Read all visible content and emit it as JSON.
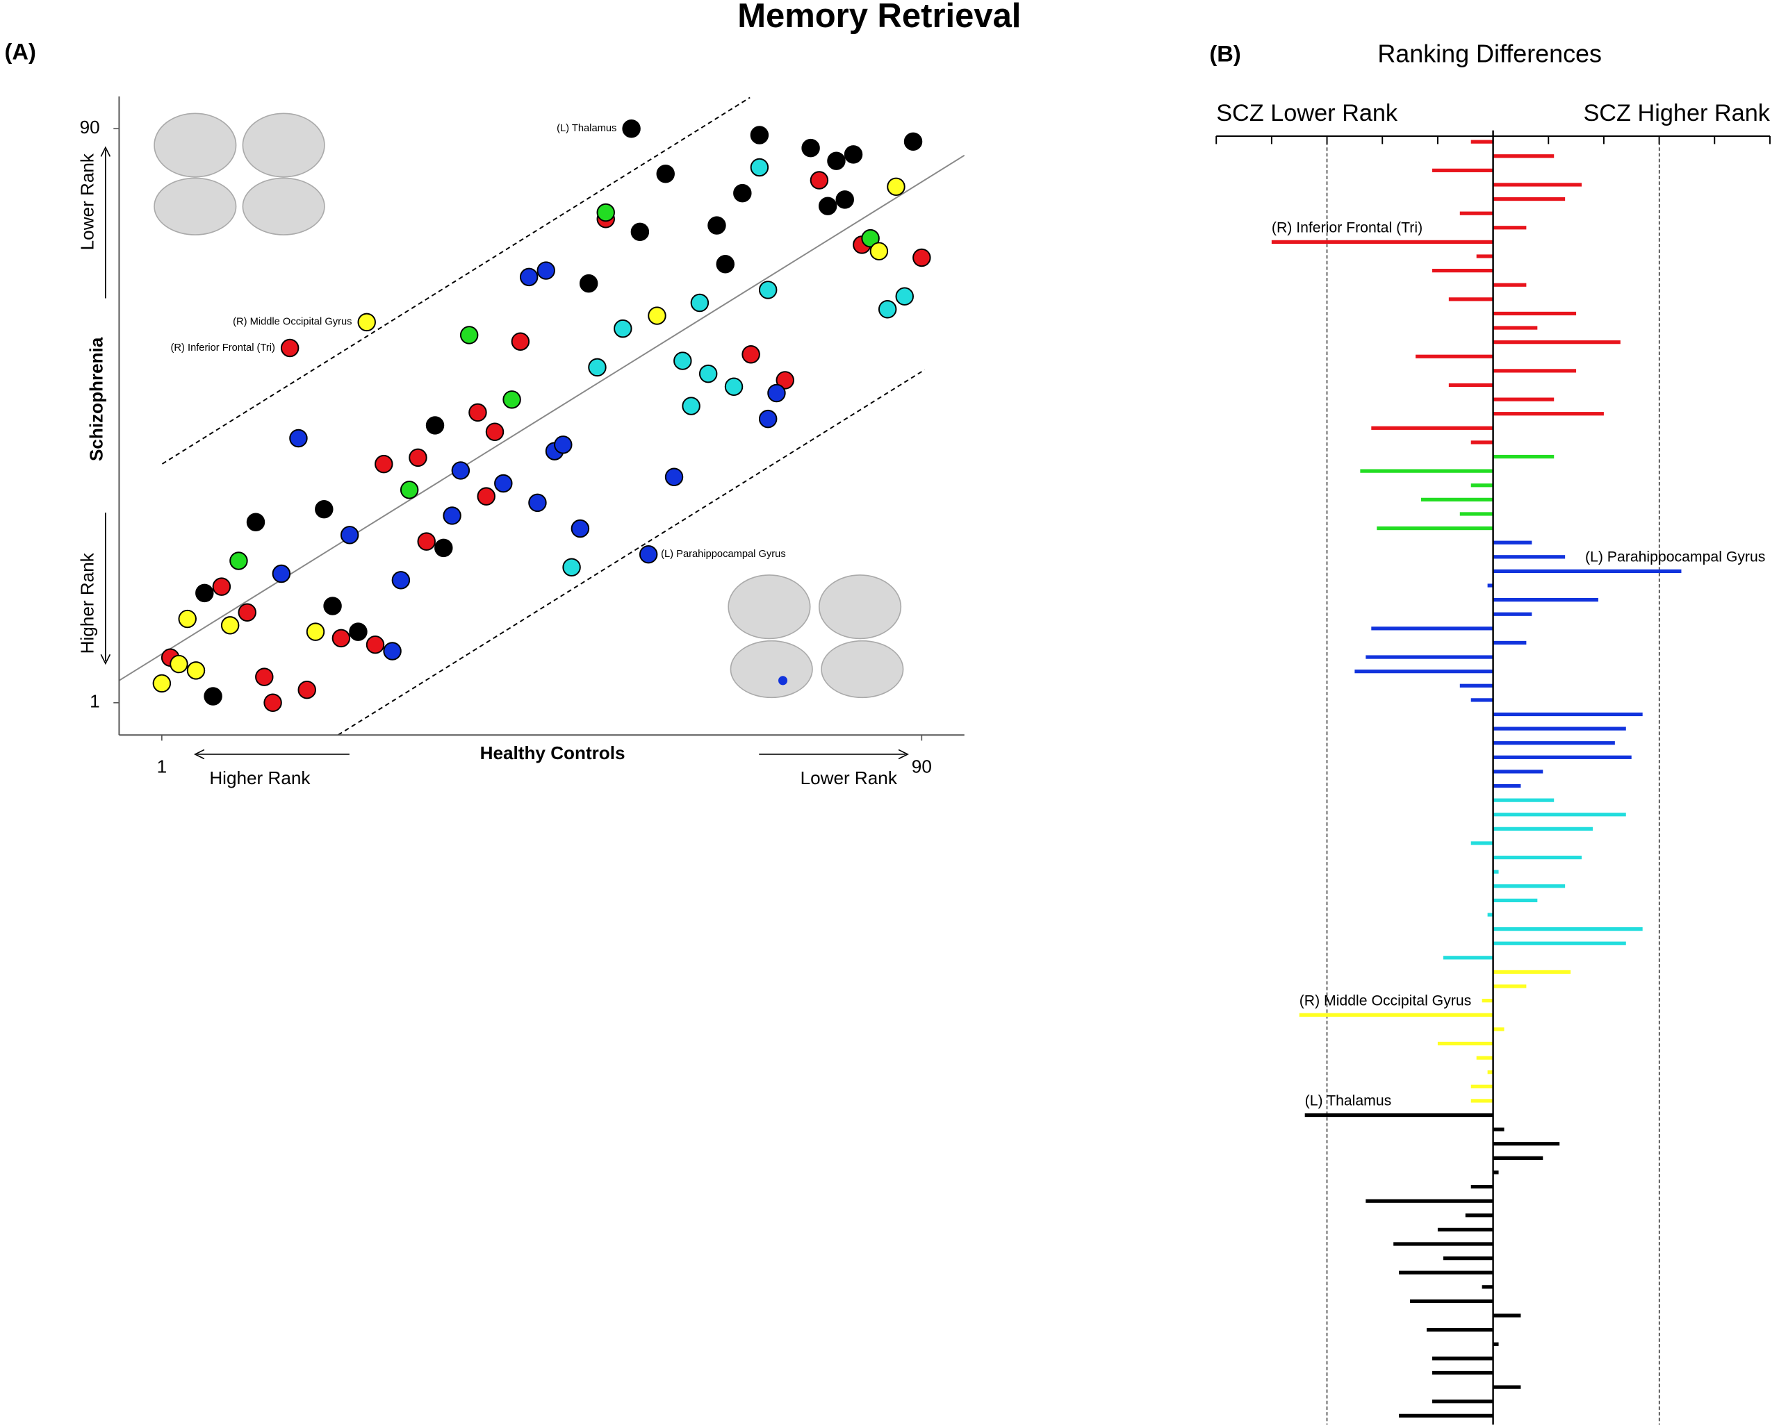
{
  "title": "Memory Retrieval",
  "chart_data": [
    {
      "type": "scatter",
      "panel": "(A)",
      "x_label": "Healthy Controls",
      "y_label": "Schizophrenia",
      "x_direction_labels": [
        "Higher Rank",
        "Lower Rank"
      ],
      "y_direction_labels": [
        "Higher Rank",
        "Lower Rank"
      ],
      "xlim": [
        -4,
        95
      ],
      "ylim": [
        -4,
        95
      ],
      "xticks": [
        1,
        90
      ],
      "yticks": [
        1,
        90
      ],
      "series": [
        {
          "color": "#000000",
          "x": [
            56,
            71,
            77,
            80,
            82,
            89,
            60,
            69,
            79,
            81,
            57,
            66,
            67,
            51,
            33,
            20,
            12,
            6,
            21,
            24,
            34,
            7
          ],
          "y": [
            90,
            89,
            87,
            85,
            86,
            88,
            83,
            80,
            78,
            79,
            74,
            75,
            69,
            66,
            44,
            31,
            29,
            18,
            16,
            12,
            25,
            2
          ],
          "labels": [
            "(L) Thalamus",
            null,
            null,
            null,
            null,
            null,
            null,
            null,
            null,
            null,
            null,
            null,
            null,
            null,
            null,
            null,
            null,
            null,
            null,
            null,
            null,
            null
          ]
        },
        {
          "color": "#e8141c",
          "x": [
            78,
            53,
            83,
            90,
            43,
            16,
            70,
            74,
            38,
            40,
            27,
            31,
            39,
            32,
            8,
            11,
            22,
            26,
            2,
            13,
            18,
            14
          ],
          "y": [
            82,
            76,
            72,
            70,
            57,
            56,
            55,
            51,
            46,
            43,
            38,
            39,
            33,
            26,
            19,
            15,
            11,
            10,
            8,
            5,
            3,
            1
          ],
          "labels": [
            null,
            null,
            null,
            null,
            null,
            "(R) Inferior Frontal (Tri)",
            null,
            null,
            null,
            null,
            null,
            null,
            null,
            null,
            null,
            null,
            null,
            null,
            null,
            null,
            null,
            null
          ]
        },
        {
          "color": "#22dd22",
          "x": [
            53,
            84,
            37,
            42,
            30,
            10
          ],
          "y": [
            77,
            73,
            58,
            48,
            34,
            23
          ],
          "labels": [
            null,
            null,
            null,
            null,
            null,
            null
          ]
        },
        {
          "color": "#1133dd",
          "x": [
            44,
            46,
            17,
            36,
            41,
            45,
            47,
            48,
            35,
            23,
            15,
            29,
            28,
            50,
            61,
            73,
            72,
            58
          ],
          "y": [
            67,
            68,
            42,
            37,
            35,
            32,
            40,
            41,
            30,
            27,
            21,
            20,
            9,
            28,
            36,
            49,
            45,
            24
          ],
          "labels": [
            null,
            null,
            null,
            null,
            null,
            null,
            null,
            null,
            null,
            null,
            null,
            null,
            null,
            null,
            null,
            null,
            null,
            "(L) Parahippocampal Gyrus"
          ]
        },
        {
          "color": "#22dddd",
          "x": [
            71,
            72,
            64,
            55,
            52,
            62,
            65,
            68,
            63,
            86,
            88,
            49
          ],
          "y": [
            84,
            65,
            63,
            59,
            53,
            54,
            52,
            50,
            47,
            62,
            64,
            22
          ],
          "labels": [
            null,
            null,
            null,
            null,
            null,
            null,
            null,
            null,
            null,
            null,
            null,
            null
          ]
        },
        {
          "color": "#ffff22",
          "x": [
            87,
            85,
            59,
            25,
            4,
            9,
            19,
            3,
            5,
            1
          ],
          "y": [
            81,
            71,
            61,
            60,
            14,
            13,
            12,
            7,
            6,
            4
          ],
          "labels": [
            null,
            null,
            null,
            "(R) Middle Occipital Gyrus",
            null,
            null,
            null,
            null,
            null,
            null
          ]
        }
      ]
    },
    {
      "type": "barh",
      "panel": "(B)",
      "title": "Ranking Differences",
      "left_label": "SCZ Lower Rank",
      "right_label": "SCZ Higher Rank",
      "xlim": [
        -50,
        50
      ],
      "xticks": [
        -50,
        -40,
        -30,
        -20,
        -10,
        0,
        10,
        20,
        30,
        40,
        50
      ],
      "threshold_lines": [
        -30,
        30
      ],
      "series": [
        {
          "color": "#e8141c",
          "values": [
            -4,
            11,
            -11,
            16,
            13,
            -6,
            6,
            -40,
            -3,
            -11,
            6,
            -8,
            15,
            8,
            23,
            -14,
            15,
            -8,
            11,
            20,
            -22,
            -4
          ],
          "labels": [
            null,
            null,
            null,
            null,
            null,
            null,
            null,
            "(R) Inferior Frontal (Tri)",
            null,
            null,
            null,
            null,
            null,
            null,
            null,
            null,
            null,
            null,
            null,
            null,
            null,
            null
          ]
        },
        {
          "color": "#22dd22",
          "values": [
            11,
            -24,
            -4,
            -13,
            -6,
            -21
          ],
          "labels": [
            null,
            null,
            null,
            null,
            null,
            null
          ]
        },
        {
          "color": "#1133dd",
          "values": [
            7,
            13,
            34,
            -1,
            19,
            7,
            -22,
            6,
            -23,
            -25,
            -6,
            -4,
            27,
            24,
            22,
            25,
            9,
            5
          ],
          "labels": [
            null,
            null,
            "(L) Parahippocampal Gyrus",
            null,
            null,
            null,
            null,
            null,
            null,
            null,
            null,
            null,
            null,
            null,
            null,
            null,
            null,
            null
          ]
        },
        {
          "color": "#22dddd",
          "values": [
            11,
            24,
            18,
            -4,
            16,
            1,
            13,
            8,
            -1,
            27,
            24,
            -9
          ],
          "labels": [
            null,
            null,
            null,
            null,
            null,
            null,
            null,
            null,
            null,
            null,
            null,
            null
          ]
        },
        {
          "color": "#ffff22",
          "values": [
            14,
            6,
            -2,
            -35,
            2,
            -10,
            -3,
            -1,
            -4,
            -4
          ],
          "labels": [
            null,
            null,
            null,
            "(R) Middle Occipital Gyrus",
            null,
            null,
            null,
            null,
            null,
            null
          ]
        },
        {
          "color": "#000000",
          "values": [
            -34,
            2,
            12,
            9,
            1,
            -4,
            -23,
            -5,
            -10,
            -18,
            -9,
            -17,
            -2,
            -15,
            5,
            -12,
            1,
            -11,
            -11,
            5,
            -11,
            -17
          ],
          "labels": [
            "(L) Thalamus",
            null,
            null,
            null,
            null,
            null,
            null,
            null,
            null,
            null,
            null,
            null,
            null,
            null,
            null,
            null,
            null,
            null,
            null,
            null,
            null,
            null
          ]
        }
      ]
    }
  ]
}
